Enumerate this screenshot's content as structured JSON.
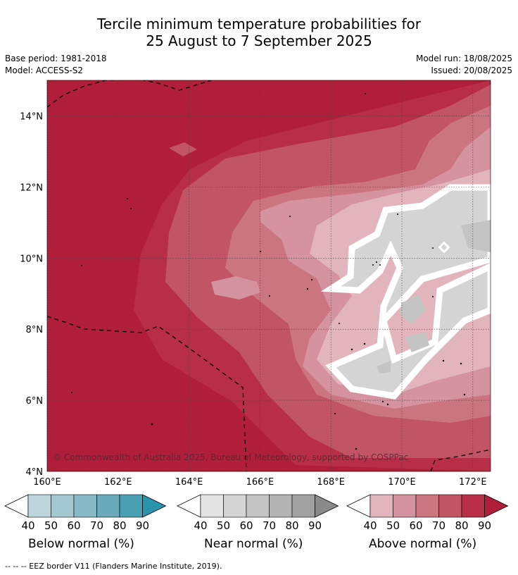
{
  "title": {
    "line1": "Tercile minimum temperature probabilities for",
    "line2": "25 August to 7 September 2025"
  },
  "meta": {
    "base_period": "Base period: 1981-2018",
    "model": "Model: ACCESS-S2",
    "model_run": "Model run: 18/08/2025",
    "issued": "Issued: 20/08/2025"
  },
  "map": {
    "copyright": "© Commonwealth of Australia 2025, Bureau of Meteorology, supported by COSPPac",
    "lat_labels": [
      "14°N",
      "12°N",
      "10°N",
      "8°N",
      "6°N",
      "4°N"
    ],
    "lon_labels": [
      "160°E",
      "162°E",
      "164°E",
      "166°E",
      "168°E",
      "170°E",
      "172°E"
    ],
    "lat_values": [
      14,
      12,
      10,
      8,
      6,
      4
    ],
    "lon_values": [
      160,
      162,
      164,
      166,
      168,
      170,
      172
    ],
    "lat_range": [
      4,
      15
    ],
    "lon_range": [
      160,
      172.5
    ],
    "grid": true
  },
  "legends": [
    {
      "name": "Below normal (%)",
      "ticks": [
        "40",
        "50",
        "60",
        "70",
        "80",
        "90"
      ],
      "colors": [
        "#bfd5dc",
        "#a4c8cf",
        "#88b9c6",
        "#6aaabb",
        "#4aa0b3",
        "#2994aa"
      ]
    },
    {
      "name": "Near normal (%)",
      "ticks": [
        "40",
        "50",
        "60",
        "70",
        "80",
        "90"
      ],
      "colors": [
        "#e4e4e4",
        "#d4d4d4",
        "#c4c4c4",
        "#b3b3b3",
        "#a1a1a1",
        "#8a8a8a"
      ]
    },
    {
      "name": "Above normal (%)",
      "ticks": [
        "40",
        "50",
        "60",
        "70",
        "80",
        "90"
      ],
      "colors": [
        "#e2b5bc",
        "#d4939e",
        "#cb7581",
        "#c15565",
        "#b82e47",
        "#b01e3a"
      ]
    }
  ],
  "footnote": "--  --  -- EEZ border V11 (Flanders Marine Institute, 2019)."
}
